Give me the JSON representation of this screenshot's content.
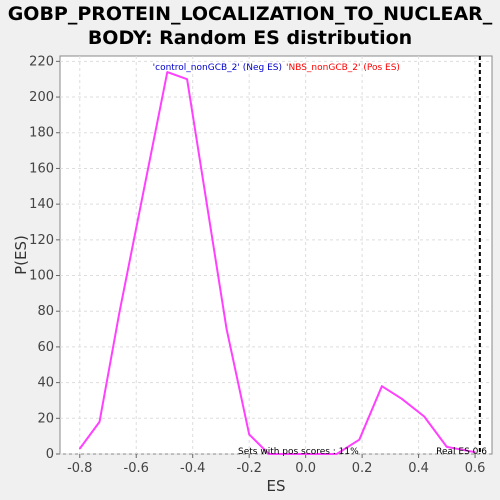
{
  "chart_data": {
    "type": "line",
    "title": "GOBP_PROTEIN_LOCALIZATION_TO_NUCLEAR_\nBODY: Random ES distribution",
    "xlabel": "ES",
    "ylabel": "P(ES)",
    "xlim": [
      -0.87,
      0.66
    ],
    "ylim": [
      0,
      223
    ],
    "xticks": [
      -0.8,
      -0.6,
      -0.4,
      -0.2,
      0.0,
      0.2,
      0.4,
      0.6
    ],
    "xtick_labels": [
      "-0.8",
      "-0.6",
      "-0.4",
      "-0.2",
      "0.0",
      "0.2",
      "0.4",
      "0.6"
    ],
    "yticks": [
      0,
      20,
      40,
      60,
      80,
      100,
      120,
      140,
      160,
      180,
      200,
      220
    ],
    "grid": true,
    "series": [
      {
        "color": "#ff40ff",
        "x": [
          -0.8,
          -0.73,
          -0.66,
          -0.49,
          -0.42,
          -0.28,
          -0.2,
          -0.13,
          0.0,
          0.11,
          0.19,
          0.27,
          0.34,
          0.42,
          0.5,
          0.6
        ],
        "y": [
          3,
          18,
          79,
          214,
          210,
          70,
          11,
          0,
          0,
          0,
          8,
          38,
          31,
          21,
          4,
          1
        ]
      }
    ],
    "real_es": 0.617,
    "annotations": {
      "neg_label": "'control_nonGCB_2' (Neg ES)",
      "pos_label": "'NBS_nonGCB_2' (Pos ES)",
      "pos_scores": "Sets with pos scores : 11%",
      "real_es_label": "Real ES 0.6"
    },
    "colors": {
      "neg": "#0000cc",
      "pos": "#ff0000",
      "line": "#ff40ff",
      "marker": "#000000"
    }
  }
}
